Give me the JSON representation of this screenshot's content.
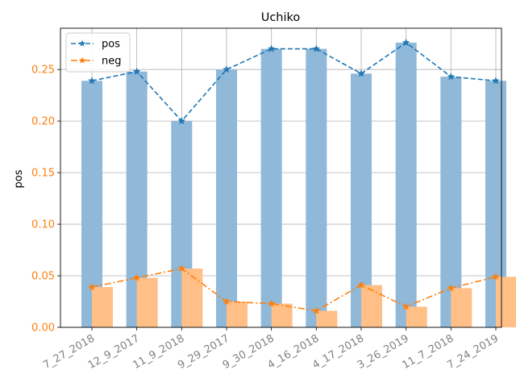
{
  "chart_data": {
    "type": "bar",
    "title": "Uchiko",
    "ylabel": "pos",
    "xlabel": "",
    "categories": [
      "7_27_2018",
      "12_9_2017",
      "11_9_2018",
      "9_29_2017",
      "9_30_2018",
      "4_16_2018",
      "4_17_2018",
      "3_26_2019",
      "11_7_2018",
      "7_24_2019"
    ],
    "series": [
      {
        "name": "pos",
        "values": [
          0.239,
          0.248,
          0.2,
          0.25,
          0.27,
          0.27,
          0.246,
          0.276,
          0.243,
          0.239
        ],
        "color": "#1f77b4",
        "bar_color": "#8fb8d9",
        "line_style": "dashed",
        "marker": "star"
      },
      {
        "name": "neg",
        "values": [
          0.039,
          0.048,
          0.057,
          0.025,
          0.023,
          0.016,
          0.041,
          0.02,
          0.038,
          0.049
        ],
        "color": "#ff7f0e",
        "bar_color": "#ffbf86",
        "line_style": "dashdot",
        "marker": "star"
      }
    ],
    "ylim": [
      0,
      0.29
    ],
    "yticks": [
      "0.00",
      "0.05",
      "0.10",
      "0.15",
      "0.20",
      "0.25"
    ],
    "ytick_color": "#ff7f0e",
    "xtick_color": "#808080",
    "grid": true,
    "legend_position": "upper-left"
  }
}
